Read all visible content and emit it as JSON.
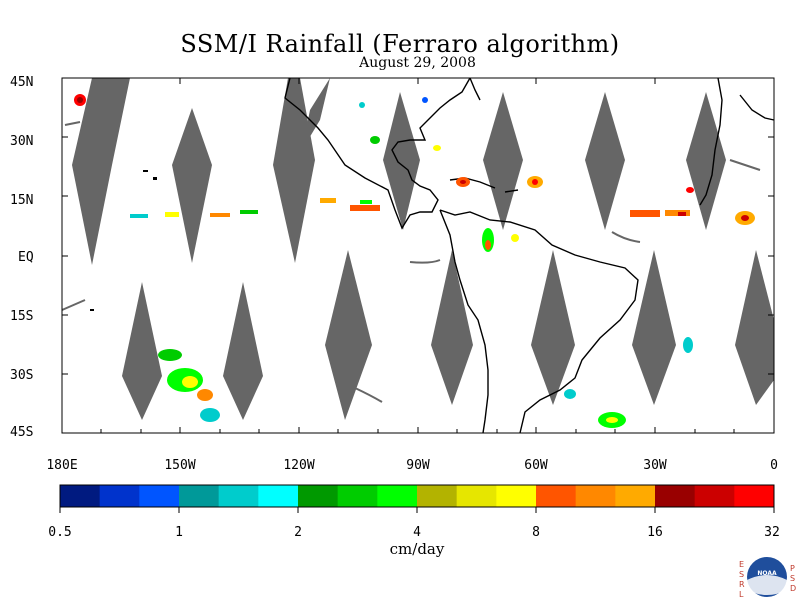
{
  "title": "SSM/I Rainfall (Ferraro algorithm)",
  "date": "August 29, 2008",
  "lat_labels": [
    "45N",
    "30N",
    "15N",
    "EQ",
    "15S",
    "30S",
    "45S"
  ],
  "lon_labels": [
    "180E",
    "150W",
    "120W",
    "90W",
    "60W",
    "30W",
    "0"
  ],
  "colorbar": {
    "colors": [
      "#001a80",
      "#0033cc",
      "#0055ff",
      "#009999",
      "#00cccc",
      "#00ffff",
      "#009900",
      "#00cc00",
      "#00ff00",
      "#b3b300",
      "#e6e600",
      "#ffff00",
      "#ff5500",
      "#ff8800",
      "#ffaa00",
      "#990000",
      "#cc0000",
      "#ff0000"
    ],
    "tick_labels": [
      "0.5",
      "1",
      "2",
      "4",
      "8",
      "16",
      "32"
    ],
    "units": "cm/day"
  },
  "logo": {
    "left_letters": [
      "E",
      "S",
      "R",
      "L"
    ],
    "right_letters": [
      "P",
      "S",
      "D"
    ],
    "center_text": "NOAA"
  },
  "map": {
    "lat_range": [
      -45,
      45
    ],
    "lon_range": [
      -180,
      0
    ],
    "no_data_color": "#666666",
    "coastline_color": "#000000"
  }
}
